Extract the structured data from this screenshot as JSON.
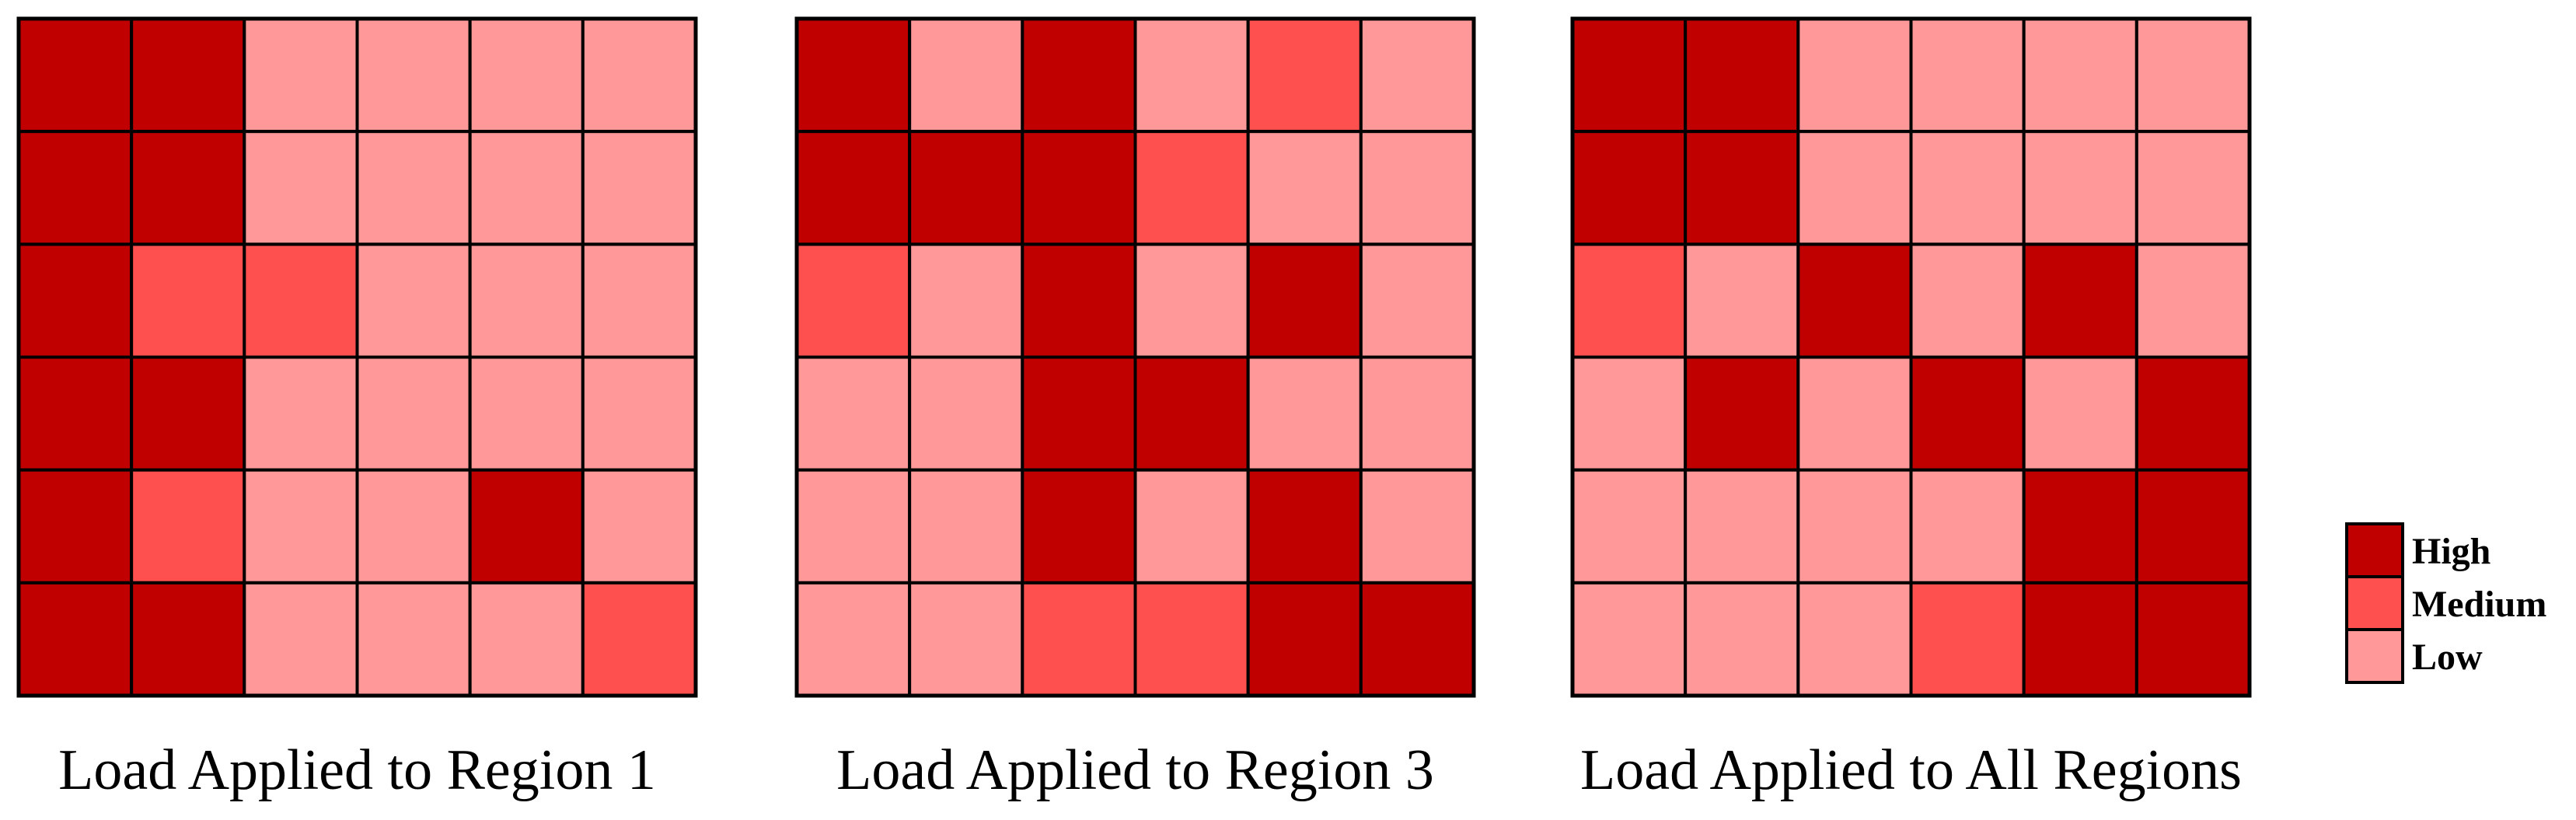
{
  "chart_data": [
    {
      "type": "heatmap",
      "title": "Load Applied to Region 1",
      "rows": 6,
      "cols": 6,
      "values": [
        [
          "High",
          "High",
          "Low",
          "Low",
          "Low",
          "Low"
        ],
        [
          "High",
          "High",
          "Low",
          "Low",
          "Low",
          "Low"
        ],
        [
          "High",
          "Medium",
          "Medium",
          "Low",
          "Low",
          "Low"
        ],
        [
          "High",
          "High",
          "Low",
          "Low",
          "Low",
          "Low"
        ],
        [
          "High",
          "Medium",
          "Low",
          "Low",
          "High",
          "Low"
        ],
        [
          "High",
          "High",
          "Low",
          "Low",
          "Low",
          "Medium"
        ]
      ]
    },
    {
      "type": "heatmap",
      "title": "Load Applied to Region 3",
      "rows": 6,
      "cols": 6,
      "values": [
        [
          "High",
          "Low",
          "High",
          "Low",
          "Medium",
          "Low"
        ],
        [
          "High",
          "High",
          "High",
          "Medium",
          "Low",
          "Low"
        ],
        [
          "Medium",
          "Low",
          "High",
          "Low",
          "High",
          "Low"
        ],
        [
          "Low",
          "Low",
          "High",
          "High",
          "Low",
          "Low"
        ],
        [
          "Low",
          "Low",
          "High",
          "Low",
          "High",
          "Low"
        ],
        [
          "Low",
          "Low",
          "Medium",
          "Medium",
          "High",
          "High"
        ]
      ]
    },
    {
      "type": "heatmap",
      "title": "Load Applied to All Regions",
      "rows": 6,
      "cols": 6,
      "values": [
        [
          "High",
          "High",
          "Low",
          "Low",
          "Low",
          "Low"
        ],
        [
          "High",
          "High",
          "Low",
          "Low",
          "Low",
          "Low"
        ],
        [
          "Medium",
          "Low",
          "High",
          "Low",
          "High",
          "Low"
        ],
        [
          "Low",
          "High",
          "Low",
          "High",
          "Low",
          "High"
        ],
        [
          "Low",
          "Low",
          "Low",
          "Low",
          "High",
          "High"
        ],
        [
          "Low",
          "Low",
          "Low",
          "Medium",
          "High",
          "High"
        ]
      ]
    }
  ],
  "legend": {
    "placement": "right",
    "items": [
      {
        "label": "High",
        "color": "#c00000"
      },
      {
        "label": "Medium",
        "color": "#ff5050"
      },
      {
        "label": "Low",
        "color": "#ff9999"
      }
    ]
  },
  "colors": {
    "High": "#c00000",
    "Medium": "#ff5050",
    "Low": "#ff9999",
    "border": "#000000",
    "background": "#ffffff"
  }
}
